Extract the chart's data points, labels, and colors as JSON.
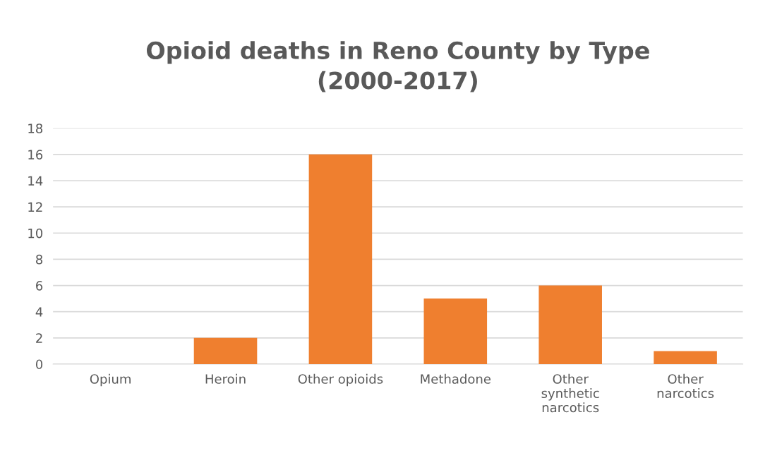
{
  "chart_data": {
    "type": "bar",
    "title": "Opioid deaths in Reno County by Type\n(2000-2017)",
    "categories": [
      "Opium",
      "Heroin",
      "Other opioids",
      "Methadone",
      "Other\nsynthetic\nnarcotics",
      "Other\nnarcotics"
    ],
    "values": [
      0,
      2,
      16,
      5,
      6,
      1
    ],
    "color": "#ef7f2f",
    "ylim": [
      0,
      18
    ],
    "yticks": [
      0,
      2,
      4,
      6,
      8,
      10,
      12,
      14,
      16,
      18
    ],
    "grid": "y"
  }
}
